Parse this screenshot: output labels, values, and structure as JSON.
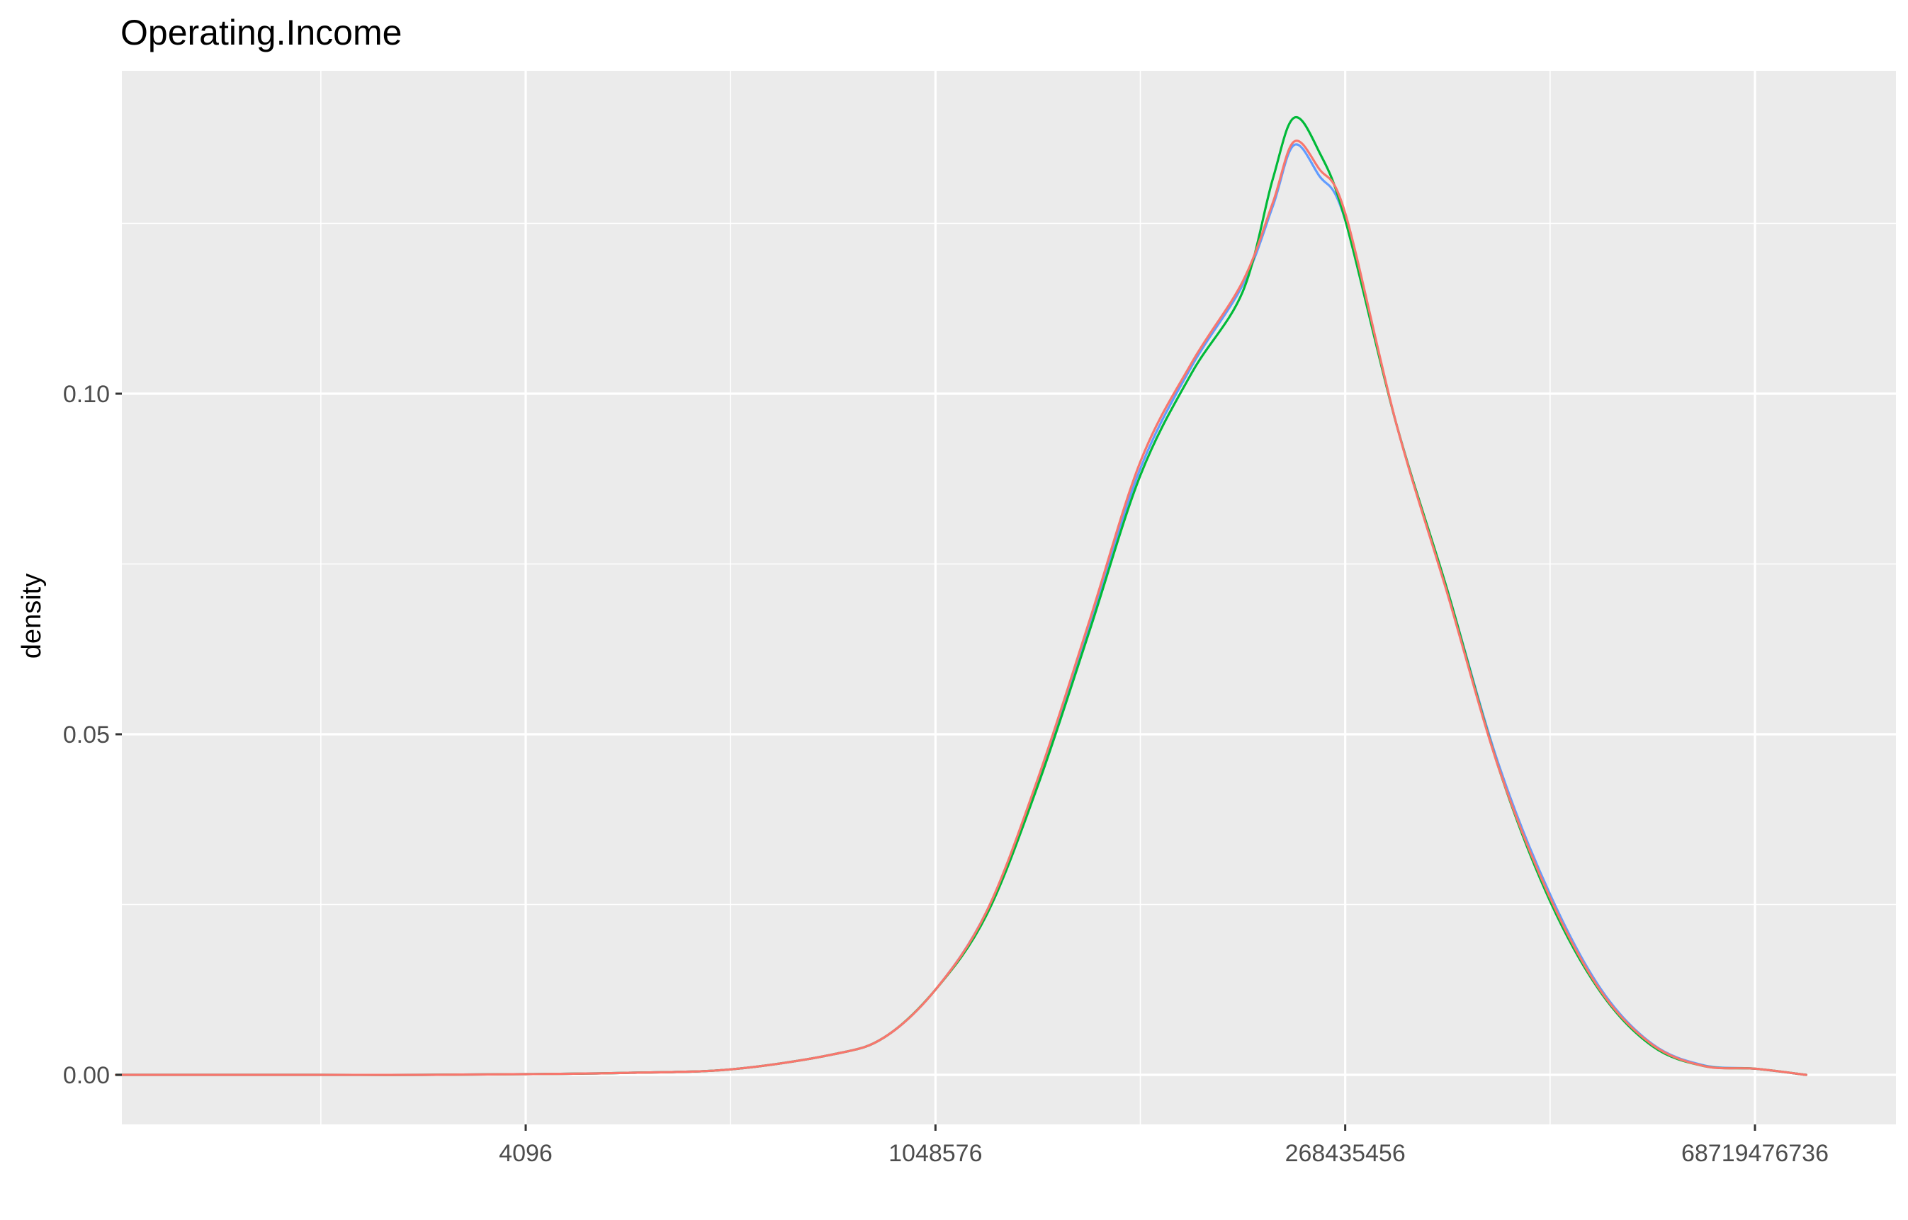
{
  "chart_data": {
    "type": "line",
    "title": "Operating.Income",
    "xlabel": "",
    "ylabel": "density",
    "x_scale": "log2",
    "x_tick_labels": [
      "4096",
      "1048576",
      "268435456",
      "68719476736"
    ],
    "x_tick_values": [
      4096,
      1048576,
      268435456,
      68719476736
    ],
    "y_tick_labels": [
      "0.00",
      "0.05",
      "0.10"
    ],
    "y_tick_values": [
      0,
      0.05,
      0.1
    ],
    "ylim": [
      -0.007,
      0.14
    ],
    "grid": true,
    "legend": "none",
    "background": "#EBEBEB",
    "gridline_color": "#FFFFFF",
    "series": [
      {
        "color": "#619CFF",
        "x": [
          16,
          64,
          256,
          1024,
          4096,
          16384,
          65536,
          262144,
          524288,
          1048576,
          2097152,
          4194304,
          8388608,
          16777216,
          33554432,
          67108864,
          100663296,
          134217728,
          188743680,
          268435456,
          536870912,
          1073741824,
          2147483648,
          4294967296,
          8589934592,
          17179869184,
          34359738368,
          68719476736,
          137438953472
        ],
        "y": [
          0.0,
          0.0,
          0.0,
          0.0,
          0.0001,
          0.0003,
          0.0008,
          0.003,
          0.0055,
          0.0125,
          0.024,
          0.043,
          0.066,
          0.089,
          0.104,
          0.116,
          0.1275,
          0.1365,
          0.132,
          0.1255,
          0.0955,
          0.071,
          0.0455,
          0.0265,
          0.0125,
          0.0045,
          0.0014,
          0.0009,
          0.0
        ]
      },
      {
        "color": "#00BA38",
        "x": [
          16,
          64,
          256,
          1024,
          4096,
          16384,
          65536,
          262144,
          524288,
          1048576,
          2097152,
          4194304,
          8388608,
          16777216,
          33554432,
          67108864,
          100663296,
          134217728,
          188743680,
          268435456,
          536870912,
          1073741824,
          2147483648,
          4294967296,
          8589934592,
          17179869184,
          34359738368,
          68719476736,
          137438953472
        ],
        "y": [
          0.0,
          0.0,
          0.0,
          0.0,
          0.0001,
          0.0003,
          0.0008,
          0.003,
          0.0055,
          0.0125,
          0.0235,
          0.0425,
          0.065,
          0.088,
          0.103,
          0.115,
          0.1315,
          0.1405,
          0.1355,
          0.1255,
          0.0955,
          0.071,
          0.045,
          0.0255,
          0.012,
          0.0042,
          0.0013,
          0.0009,
          0.0
        ]
      },
      {
        "color": "#F8766D",
        "x": [
          16,
          64,
          256,
          1024,
          4096,
          16384,
          65536,
          262144,
          524288,
          1048576,
          2097152,
          4194304,
          8388608,
          16777216,
          33554432,
          67108864,
          100663296,
          134217728,
          188743680,
          268435456,
          536870912,
          1073741824,
          2147483648,
          4294967296,
          8589934592,
          17179869184,
          34359738368,
          68719476736,
          137438953472
        ],
        "y": [
          0.0,
          0.0,
          0.0,
          0.0,
          0.0001,
          0.0003,
          0.0008,
          0.003,
          0.0055,
          0.0125,
          0.024,
          0.0435,
          0.0665,
          0.09,
          0.1045,
          0.1165,
          0.128,
          0.137,
          0.133,
          0.1265,
          0.0955,
          0.0705,
          0.045,
          0.026,
          0.0122,
          0.0044,
          0.0013,
          0.0009,
          0.0
        ]
      }
    ]
  }
}
